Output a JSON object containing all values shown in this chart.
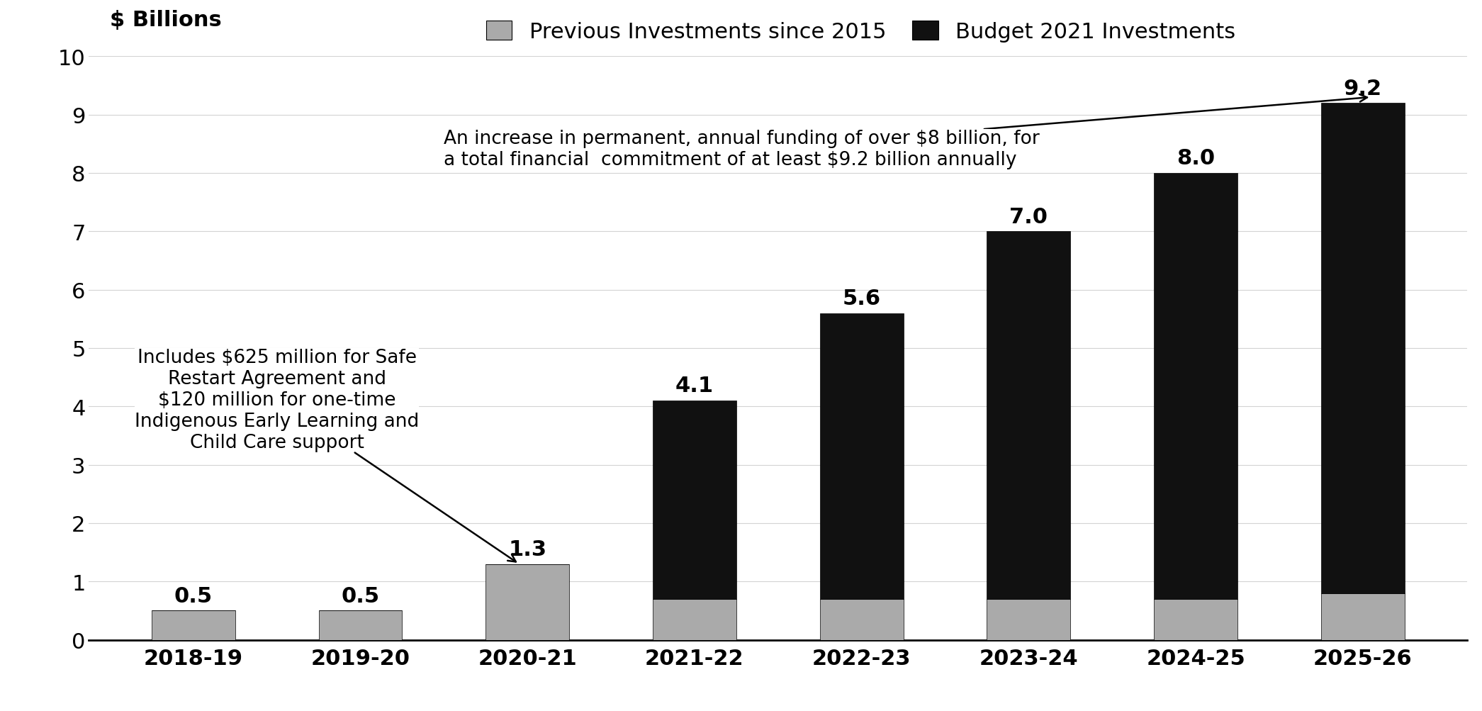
{
  "categories": [
    "2018-19",
    "2019-20",
    "2020-21",
    "2021-22",
    "2022-23",
    "2023-24",
    "2024-25",
    "2025-26"
  ],
  "totals": [
    0.5,
    0.5,
    1.3,
    4.1,
    5.6,
    7.0,
    8.0,
    9.2
  ],
  "gray_values": [
    0.5,
    0.5,
    1.3,
    0.7,
    0.7,
    0.7,
    0.7,
    0.8
  ],
  "black_values": [
    0.0,
    0.0,
    0.0,
    3.4,
    4.9,
    6.3,
    7.3,
    8.4
  ],
  "gray_color": "#AAAAAA",
  "black_color": "#111111",
  "ylim": [
    0,
    10
  ],
  "yticks": [
    0,
    1,
    2,
    3,
    4,
    5,
    6,
    7,
    8,
    9,
    10
  ],
  "ylabel_text": "$ Billions",
  "legend_gray": "Previous Investments since 2015",
  "legend_black": "Budget 2021 Investments",
  "annotation1_text": "Includes $625 million for Safe\nRestart Agreement and\n$120 million for one-time\nIndigenous Early Learning and\nChild Care support",
  "annotation2_text": "An increase in permanent, annual funding of over $8 billion, for\na total financial  commitment of at least $9.2 billion annually",
  "background_color": "#FFFFFF",
  "bar_width": 0.5
}
